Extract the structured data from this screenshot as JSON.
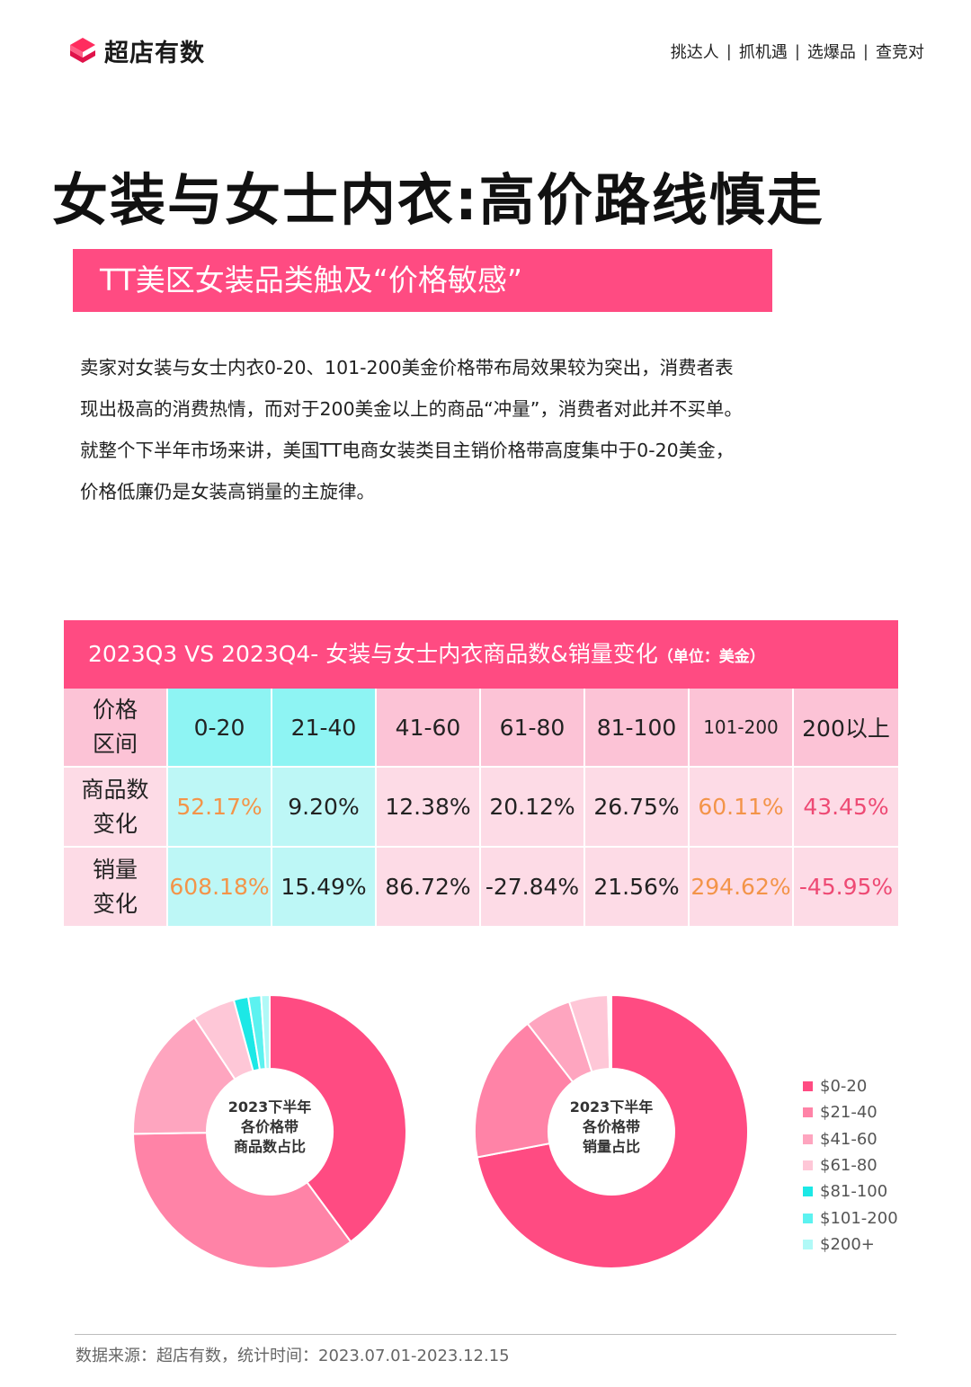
{
  "header": {
    "brand": "超店有数",
    "nav": [
      "挑达人",
      "抓机遇",
      "选爆品",
      "查竞对"
    ]
  },
  "title": "女装与女士内衣:高价路线慎走",
  "subtitle": "TT美区女装品类触及“价格敏感”",
  "intro": [
    "卖家对女装与女士内衣0-20、101-200美金价格带布局效果较为突出，消费者表",
    "现出极高的消费热情，而对于200美金以上的商品“冲量”，消费者对此并不买单。",
    "就整个下半年市场来讲，美国TT电商女装类目主销价格带高度集中于0-20美金，",
    "价格低廉仍是女装高销量的主旋律。"
  ],
  "table": {
    "title": "2023Q3 VS 2023Q4- 女装与女士内衣商品数&销量变化",
    "unit": "（单位：美金）",
    "header": {
      "label_line1": "价格",
      "label_line2": "区间",
      "cols": [
        "0-20",
        "21-40",
        "41-60",
        "61-80",
        "81-100",
        "101-200",
        "200以上"
      ]
    },
    "rows": [
      {
        "label_line1": "商品数",
        "label_line2": "变化",
        "values": [
          "52.17%",
          "9.20%",
          "12.38%",
          "20.12%",
          "26.75%",
          "60.11%",
          "43.45%"
        ]
      },
      {
        "label_line1": "销量",
        "label_line2": "变化",
        "values": [
          "608.18%",
          "15.49%",
          "86.72%",
          "-27.84%",
          "21.56%",
          "294.62%",
          "-45.95%"
        ]
      }
    ]
  },
  "colors": {
    "accent": "#ff4b82",
    "orange": "#f39449",
    "red_text": "#ee4a74",
    "cyan_head": "#8ef4f3",
    "cyan_body": "#bdf7f6",
    "pink_head": "#fcc3d6",
    "pink_body": "#fddbe6"
  },
  "chart_data": [
    {
      "type": "pie",
      "title": "2023下半年各价格带商品数占比",
      "center_lines": [
        "2023下半年",
        "各价格带",
        "商品数占比"
      ],
      "categories": [
        "$0-20",
        "$21-40",
        "$41-60",
        "$61-80",
        "$81-100",
        "$101-200",
        "$200+"
      ],
      "values": [
        39.5,
        34.5,
        15.8,
        5.0,
        1.7,
        1.5,
        1.0
      ],
      "colors": [
        "#ff4b82",
        "#ff83a7",
        "#fea5bf",
        "#fec7d7",
        "#1ce8e6",
        "#5cf2f0",
        "#b0f9f7"
      ],
      "legend": "right"
    },
    {
      "type": "pie",
      "title": "2023下半年各价格带销量占比",
      "center_lines": [
        "2023下半年",
        "各价格带",
        "销量占比"
      ],
      "categories": [
        "$0-20",
        "$21-40",
        "$41-60",
        "$61-80",
        "$81-100",
        "$101-200",
        "$200+"
      ],
      "values": [
        72.0,
        17.5,
        5.5,
        4.6,
        0.2,
        0.1,
        0.1
      ],
      "colors": [
        "#ff4b82",
        "#ff83a7",
        "#fea5bf",
        "#fec7d7",
        "#1ce8e6",
        "#5cf2f0",
        "#b0f9f7"
      ],
      "legend": "right"
    }
  ],
  "legend": [
    "$0-20",
    "$21-40",
    "$41-60",
    "$61-80",
    "$81-100",
    "$101-200",
    "$200+"
  ],
  "footer": "数据来源：超店有数，统计时间：2023.07.01-2023.12.15"
}
